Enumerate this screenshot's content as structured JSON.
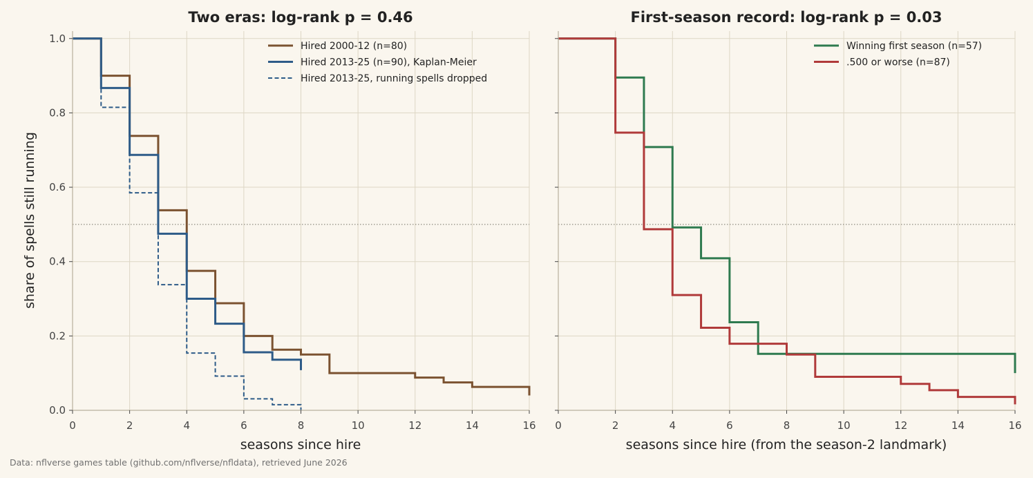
{
  "source_note": "Data: nflverse games table (github.com/nflverse/nfldata), retrieved June 2026",
  "colors": {
    "background": "#faf6ee",
    "grid": "#ddd6c4",
    "axis": "#b7af9d",
    "era_2000_12": "#7b5230",
    "era_2013_25": "#2d5b88",
    "winning": "#2e7a4f",
    "losing": "#b03a3a",
    "median_line": "#8d8a80"
  },
  "chart_data": [
    {
      "type": "line",
      "subtype": "step",
      "title": "Two eras: log-rank p = 0.46",
      "xlabel": "seasons since hire",
      "ylabel": "share of spells still running",
      "xlim": [
        0,
        16
      ],
      "ylim": [
        0,
        1.02
      ],
      "xticks": [
        0,
        2,
        4,
        6,
        8,
        10,
        12,
        14,
        16
      ],
      "yticks": [
        0.0,
        0.2,
        0.4,
        0.6,
        0.8,
        1.0
      ],
      "xtick_labels": [
        "0",
        "2",
        "4",
        "6",
        "8",
        "10",
        "12",
        "14",
        "16"
      ],
      "ytick_labels": [
        "0.0",
        "0.2",
        "0.4",
        "0.6",
        "0.8",
        "1.0"
      ],
      "grid": true,
      "reference_line_y": 0.5,
      "legend_position": "top-right",
      "series": [
        {
          "name": "Hired 2000-12 (n=80)",
          "color": "#7b5230",
          "style": "solid",
          "x": [
            0,
            1,
            2,
            3,
            4,
            5,
            6,
            7,
            8,
            9,
            12,
            13,
            14,
            16
          ],
          "y": [
            1.0,
            0.9,
            0.738,
            0.538,
            0.375,
            0.288,
            0.2,
            0.163,
            0.15,
            0.1,
            0.088,
            0.075,
            0.063,
            0.04
          ]
        },
        {
          "name": "Hired 2013-25 (n=90), Kaplan-Meier",
          "color": "#2d5b88",
          "style": "solid",
          "x": [
            0,
            1,
            2,
            3,
            4,
            5,
            6,
            7,
            8
          ],
          "y": [
            1.0,
            0.867,
            0.687,
            0.475,
            0.3,
            0.233,
            0.156,
            0.136,
            0.108
          ]
        },
        {
          "name": "Hired 2013-25, running spells dropped",
          "color": "#2d5b88",
          "style": "dashed",
          "x": [
            0,
            1,
            2,
            3,
            4,
            5,
            6,
            7,
            8
          ],
          "y": [
            1.0,
            0.815,
            0.585,
            0.338,
            0.154,
            0.092,
            0.031,
            0.015,
            0.0
          ]
        }
      ]
    },
    {
      "type": "line",
      "subtype": "step",
      "title": "First-season record: log-rank p = 0.03",
      "xlabel": "seasons since hire (from the season-2 landmark)",
      "ylabel": "",
      "xlim": [
        0,
        16
      ],
      "ylim": [
        0,
        1.02
      ],
      "xticks": [
        0,
        2,
        4,
        6,
        8,
        10,
        12,
        14,
        16
      ],
      "yticks": [
        0.0,
        0.2,
        0.4,
        0.6,
        0.8,
        1.0
      ],
      "xtick_labels": [
        "0",
        "2",
        "4",
        "6",
        "8",
        "10",
        "12",
        "14",
        "16"
      ],
      "grid": true,
      "reference_line_y": 0.5,
      "legend_position": "top-right",
      "series": [
        {
          "name": "Winning first season (n=57)",
          "color": "#2e7a4f",
          "style": "solid",
          "x": [
            0,
            2,
            3,
            4,
            5,
            6,
            7,
            16
          ],
          "y": [
            1.0,
            0.895,
            0.708,
            0.492,
            0.409,
            0.237,
            0.152,
            0.1
          ]
        },
        {
          "name": ".500 or worse (n=87)",
          "color": "#b03a3a",
          "style": "solid",
          "x": [
            0,
            2,
            3,
            4,
            5,
            6,
            8,
            9,
            12,
            13,
            14,
            16
          ],
          "y": [
            1.0,
            0.747,
            0.487,
            0.31,
            0.222,
            0.179,
            0.15,
            0.09,
            0.071,
            0.054,
            0.036,
            0.016
          ]
        }
      ]
    }
  ]
}
